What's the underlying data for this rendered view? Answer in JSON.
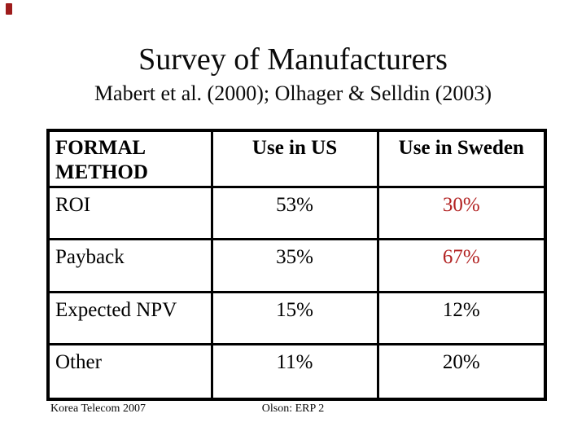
{
  "colors": {
    "accent_red": "#B22222",
    "corner_mark_red": "#9E1C1C"
  },
  "slide": {
    "title": "Survey of Manufacturers",
    "subtitle": "Mabert et al. (2000); Olhager & Selldin (2003)"
  },
  "table": {
    "headers": [
      "FORMAL METHOD",
      "Use in US",
      "Use in Sweden"
    ],
    "rows": [
      {
        "method": "ROI",
        "us": {
          "text": "53%",
          "color": "black"
        },
        "sweden": {
          "text": "30%",
          "color": "red"
        }
      },
      {
        "method": "Payback",
        "us": {
          "text": "35%",
          "color": "black"
        },
        "sweden": {
          "text": "67%",
          "color": "red"
        }
      },
      {
        "method": "Expected NPV",
        "us": {
          "text": "15%",
          "color": "black"
        },
        "sweden": {
          "text": "12%",
          "color": "black"
        }
      },
      {
        "method": "Other",
        "us": {
          "text": "11%",
          "color": "black"
        },
        "sweden": {
          "text": "20%",
          "color": "black"
        }
      }
    ]
  },
  "footer": {
    "left": "Korea Telecom 2007",
    "center": "Olson: ERP 2"
  }
}
